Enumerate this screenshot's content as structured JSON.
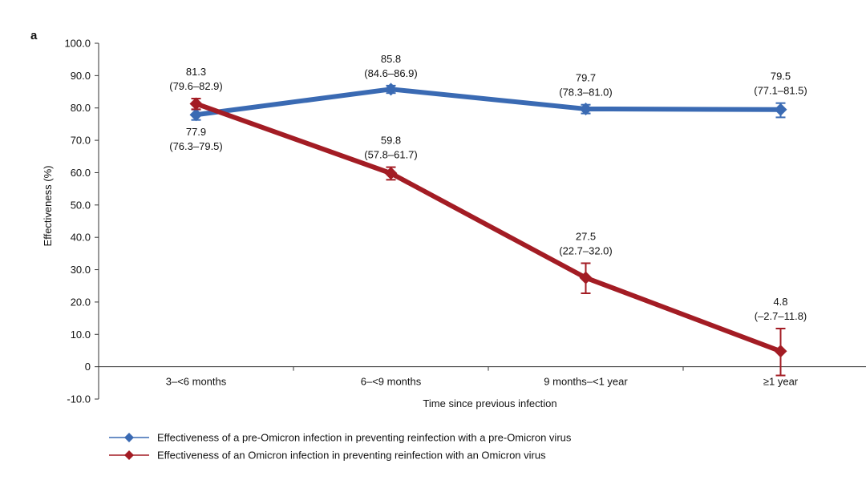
{
  "panel_label": "a",
  "chart_data": {
    "type": "line",
    "title": "",
    "xlabel": "Time since previous infection",
    "ylabel": "Effectiveness (%)",
    "ylim": [
      -10,
      100
    ],
    "yticks": [
      "100.0",
      "90.0",
      "80.0",
      "70.0",
      "60.0",
      "50.0",
      "40.0",
      "30.0",
      "20.0",
      "10.0",
      "0",
      "-10.0"
    ],
    "categories": [
      "3–<6 months",
      "6–<9 months",
      "9 months–<1 year",
      "≥1 year"
    ],
    "grid": false,
    "legend_position": "bottom-left",
    "series": [
      {
        "name": "Effectiveness of a pre-Omicron infection in preventing reinfection with a pre-Omicron virus",
        "color": "#3a6ab3",
        "marker": "diamond",
        "values": [
          77.9,
          85.8,
          79.7,
          79.5
        ],
        "lower": [
          76.3,
          84.6,
          78.3,
          77.1
        ],
        "upper": [
          79.5,
          86.9,
          81.0,
          81.5
        ],
        "labels": [
          {
            "value": "77.9",
            "ci": "(76.3–79.5)",
            "position": "below"
          },
          {
            "value": "85.8",
            "ci": "(84.6–86.9)",
            "position": "above"
          },
          {
            "value": "79.7",
            "ci": "(78.3–81.0)",
            "position": "above"
          },
          {
            "value": "79.5",
            "ci": "(77.1–81.5)",
            "position": "above"
          }
        ]
      },
      {
        "name": "Effectiveness of an Omicron infection in preventing reinfection with an Omicron virus",
        "color": "#a31c24",
        "marker": "diamond",
        "values": [
          81.3,
          59.8,
          27.5,
          4.8
        ],
        "lower": [
          79.6,
          57.8,
          22.7,
          -2.7
        ],
        "upper": [
          82.9,
          61.7,
          32.0,
          11.8
        ],
        "labels": [
          {
            "value": "81.3",
            "ci": "(79.6–82.9)",
            "position": "above"
          },
          {
            "value": "59.8",
            "ci": "(57.8–61.7)",
            "position": "above"
          },
          {
            "value": "27.5",
            "ci": "(22.7–32.0)",
            "position": "above"
          },
          {
            "value": "4.8",
            "ci": "(–2.7–11.8)",
            "position": "above"
          }
        ]
      }
    ]
  }
}
